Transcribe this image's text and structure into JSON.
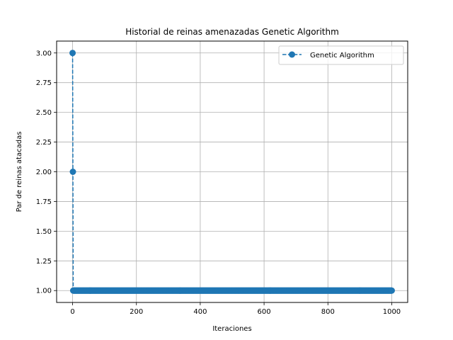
{
  "chart_data": {
    "type": "line",
    "title": "Historial de reinas amenazadas Genetic Algorithm",
    "xlabel": "Iteraciones",
    "ylabel": "Par de reinas atacadas",
    "xlim": [
      -50,
      1050
    ],
    "ylim": [
      0.9,
      3.1
    ],
    "xticks": [
      0,
      200,
      400,
      600,
      800,
      1000
    ],
    "xtick_labels": [
      "0",
      "200",
      "400",
      "600",
      "800",
      "1000"
    ],
    "yticks": [
      1.0,
      1.25,
      1.5,
      1.75,
      2.0,
      2.25,
      2.5,
      2.75,
      3.0
    ],
    "ytick_labels": [
      "1.00",
      "1.25",
      "1.50",
      "1.75",
      "2.00",
      "2.25",
      "2.50",
      "2.75",
      "3.00"
    ],
    "grid": true,
    "legend_position": "top-right",
    "series": [
      {
        "name": "Genetic Algorithm",
        "color": "#1f77b4",
        "line_style": "dashed",
        "marker": "circle",
        "x_start": 0,
        "x_end": 1000,
        "segments": [
          {
            "x": [
              0,
              0
            ],
            "y": 3.0
          },
          {
            "x": [
              1,
              1
            ],
            "y": 2.0
          },
          {
            "x": [
              2,
              1000
            ],
            "y": 1.0
          }
        ]
      }
    ]
  }
}
